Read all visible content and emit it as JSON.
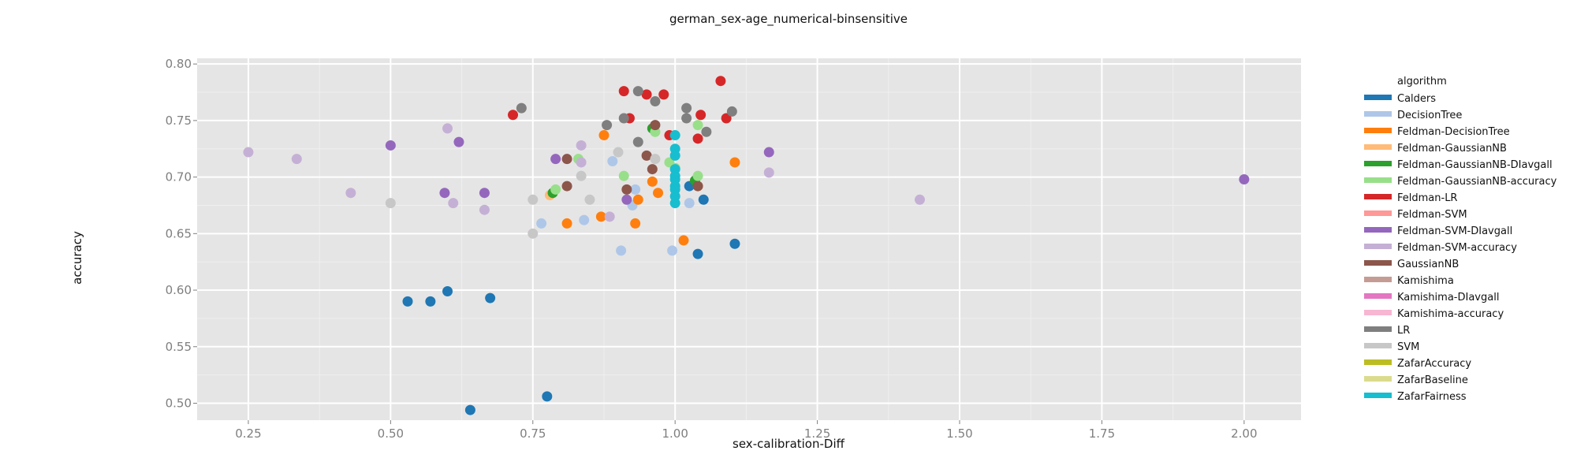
{
  "colors": {
    "Calders": "#1f77b4",
    "DecisionTree": "#aec7e8",
    "Feldman-DecisionTree": "#ff7f0e",
    "Feldman-GaussianNB": "#ffbb78",
    "Feldman-GaussianNB-DIavgall": "#2ca02c",
    "Feldman-GaussianNB-accuracy": "#98df8a",
    "Feldman-LR": "#d62728",
    "Feldman-SVM": "#ff9896",
    "Feldman-SVM-DIavgall": "#9467bd",
    "Feldman-SVM-accuracy": "#c5b0d5",
    "GaussianNB": "#8c564b",
    "Kamishima": "#c49c94",
    "Kamishima-DIavgall": "#e377c2",
    "Kamishima-accuracy": "#f7b6d2",
    "LR": "#7f7f7f",
    "SVM": "#c7c7c7",
    "ZafarAccuracy": "#bcbd22",
    "ZafarBaseline": "#dbdb8d",
    "ZafarFairness": "#17becf"
  },
  "chart_data": {
    "type": "scatter",
    "title": "german_sex-age_numerical-binsensitive",
    "xlabel": "sex-calibration-Diff",
    "ylabel": "accuracy",
    "xlim": [
      0.16,
      2.1
    ],
    "ylim": [
      0.485,
      0.805
    ],
    "xticks": [
      "0.25",
      "0.50",
      "0.75",
      "1.00",
      "1.25",
      "1.50",
      "1.75",
      "2.00"
    ],
    "yticks": [
      "0.50",
      "0.55",
      "0.60",
      "0.65",
      "0.70",
      "0.75",
      "0.80"
    ],
    "grid": true,
    "legend_title": "algorithm",
    "legend_position": "right",
    "series": [
      {
        "name": "Calders",
        "points": [
          [
            0.53,
            0.59
          ],
          [
            0.57,
            0.59
          ],
          [
            0.6,
            0.599
          ],
          [
            0.675,
            0.593
          ],
          [
            0.64,
            0.494
          ],
          [
            0.775,
            0.506
          ],
          [
            1.04,
            0.632
          ],
          [
            1.105,
            0.641
          ],
          [
            1.05,
            0.68
          ],
          [
            1.025,
            0.692
          ]
        ]
      },
      {
        "name": "DecisionTree",
        "points": [
          [
            0.765,
            0.659
          ],
          [
            0.84,
            0.662
          ],
          [
            0.89,
            0.714
          ],
          [
            0.905,
            0.635
          ],
          [
            0.925,
            0.675
          ],
          [
            0.93,
            0.689
          ],
          [
            0.995,
            0.635
          ],
          [
            1.025,
            0.677
          ]
        ]
      },
      {
        "name": "Feldman-DecisionTree",
        "points": [
          [
            0.81,
            0.659
          ],
          [
            0.87,
            0.665
          ],
          [
            0.875,
            0.737
          ],
          [
            0.93,
            0.659
          ],
          [
            0.935,
            0.68
          ],
          [
            0.96,
            0.696
          ],
          [
            0.97,
            0.686
          ],
          [
            1.015,
            0.644
          ],
          [
            1.04,
            0.692
          ],
          [
            1.105,
            0.713
          ]
        ]
      },
      {
        "name": "Feldman-GaussianNB",
        "points": [
          [
            0.78,
            0.684
          ]
        ]
      },
      {
        "name": "Feldman-GaussianNB-DIavgall",
        "points": [
          [
            0.785,
            0.686
          ],
          [
            0.96,
            0.743
          ],
          [
            1.035,
            0.697
          ]
        ]
      },
      {
        "name": "Feldman-GaussianNB-accuracy",
        "points": [
          [
            0.79,
            0.689
          ],
          [
            0.83,
            0.716
          ],
          [
            0.91,
            0.701
          ],
          [
            0.965,
            0.74
          ],
          [
            0.99,
            0.713
          ],
          [
            1.0,
            0.708
          ],
          [
            1.04,
            0.746
          ],
          [
            1.04,
            0.701
          ]
        ]
      },
      {
        "name": "Feldman-LR",
        "points": [
          [
            0.715,
            0.755
          ],
          [
            0.91,
            0.776
          ],
          [
            0.92,
            0.752
          ],
          [
            0.95,
            0.773
          ],
          [
            0.98,
            0.773
          ],
          [
            0.99,
            0.737
          ],
          [
            1.04,
            0.734
          ],
          [
            1.045,
            0.755
          ],
          [
            1.08,
            0.785
          ],
          [
            1.09,
            0.752
          ]
        ]
      },
      {
        "name": "Feldman-SVM-DIavgall",
        "points": [
          [
            0.5,
            0.728
          ],
          [
            0.595,
            0.686
          ],
          [
            0.62,
            0.731
          ],
          [
            0.665,
            0.686
          ],
          [
            0.79,
            0.716
          ],
          [
            0.915,
            0.68
          ],
          [
            1.165,
            0.722
          ],
          [
            2.0,
            0.698
          ]
        ]
      },
      {
        "name": "Feldman-SVM-accuracy",
        "points": [
          [
            0.25,
            0.722
          ],
          [
            0.335,
            0.716
          ],
          [
            0.43,
            0.686
          ],
          [
            0.6,
            0.743
          ],
          [
            0.61,
            0.677
          ],
          [
            0.665,
            0.671
          ],
          [
            0.835,
            0.728
          ],
          [
            0.835,
            0.713
          ],
          [
            0.885,
            0.665
          ],
          [
            1.165,
            0.704
          ],
          [
            1.43,
            0.68
          ]
        ]
      },
      {
        "name": "GaussianNB",
        "points": [
          [
            0.81,
            0.692
          ],
          [
            0.81,
            0.716
          ],
          [
            0.915,
            0.689
          ],
          [
            0.95,
            0.719
          ],
          [
            0.96,
            0.707
          ],
          [
            0.965,
            0.746
          ],
          [
            1.04,
            0.692
          ]
        ]
      },
      {
        "name": "LR",
        "points": [
          [
            0.73,
            0.761
          ],
          [
            0.88,
            0.746
          ],
          [
            0.91,
            0.752
          ],
          [
            0.935,
            0.776
          ],
          [
            0.935,
            0.731
          ],
          [
            0.965,
            0.767
          ],
          [
            1.02,
            0.761
          ],
          [
            1.02,
            0.752
          ],
          [
            1.055,
            0.74
          ],
          [
            1.1,
            0.758
          ]
        ]
      },
      {
        "name": "SVM",
        "points": [
          [
            0.5,
            0.677
          ],
          [
            0.75,
            0.68
          ],
          [
            0.75,
            0.65
          ],
          [
            0.835,
            0.701
          ],
          [
            0.85,
            0.68
          ],
          [
            0.9,
            0.722
          ],
          [
            0.965,
            0.716
          ]
        ]
      },
      {
        "name": "ZafarFairness",
        "points": [
          [
            1.0,
            0.737
          ],
          [
            1.0,
            0.725
          ],
          [
            1.0,
            0.719
          ],
          [
            1.0,
            0.707
          ],
          [
            1.0,
            0.701
          ],
          [
            1.0,
            0.698
          ],
          [
            1.0,
            0.692
          ],
          [
            1.0,
            0.689
          ],
          [
            1.0,
            0.683
          ],
          [
            1.0,
            0.677
          ]
        ]
      }
    ]
  }
}
